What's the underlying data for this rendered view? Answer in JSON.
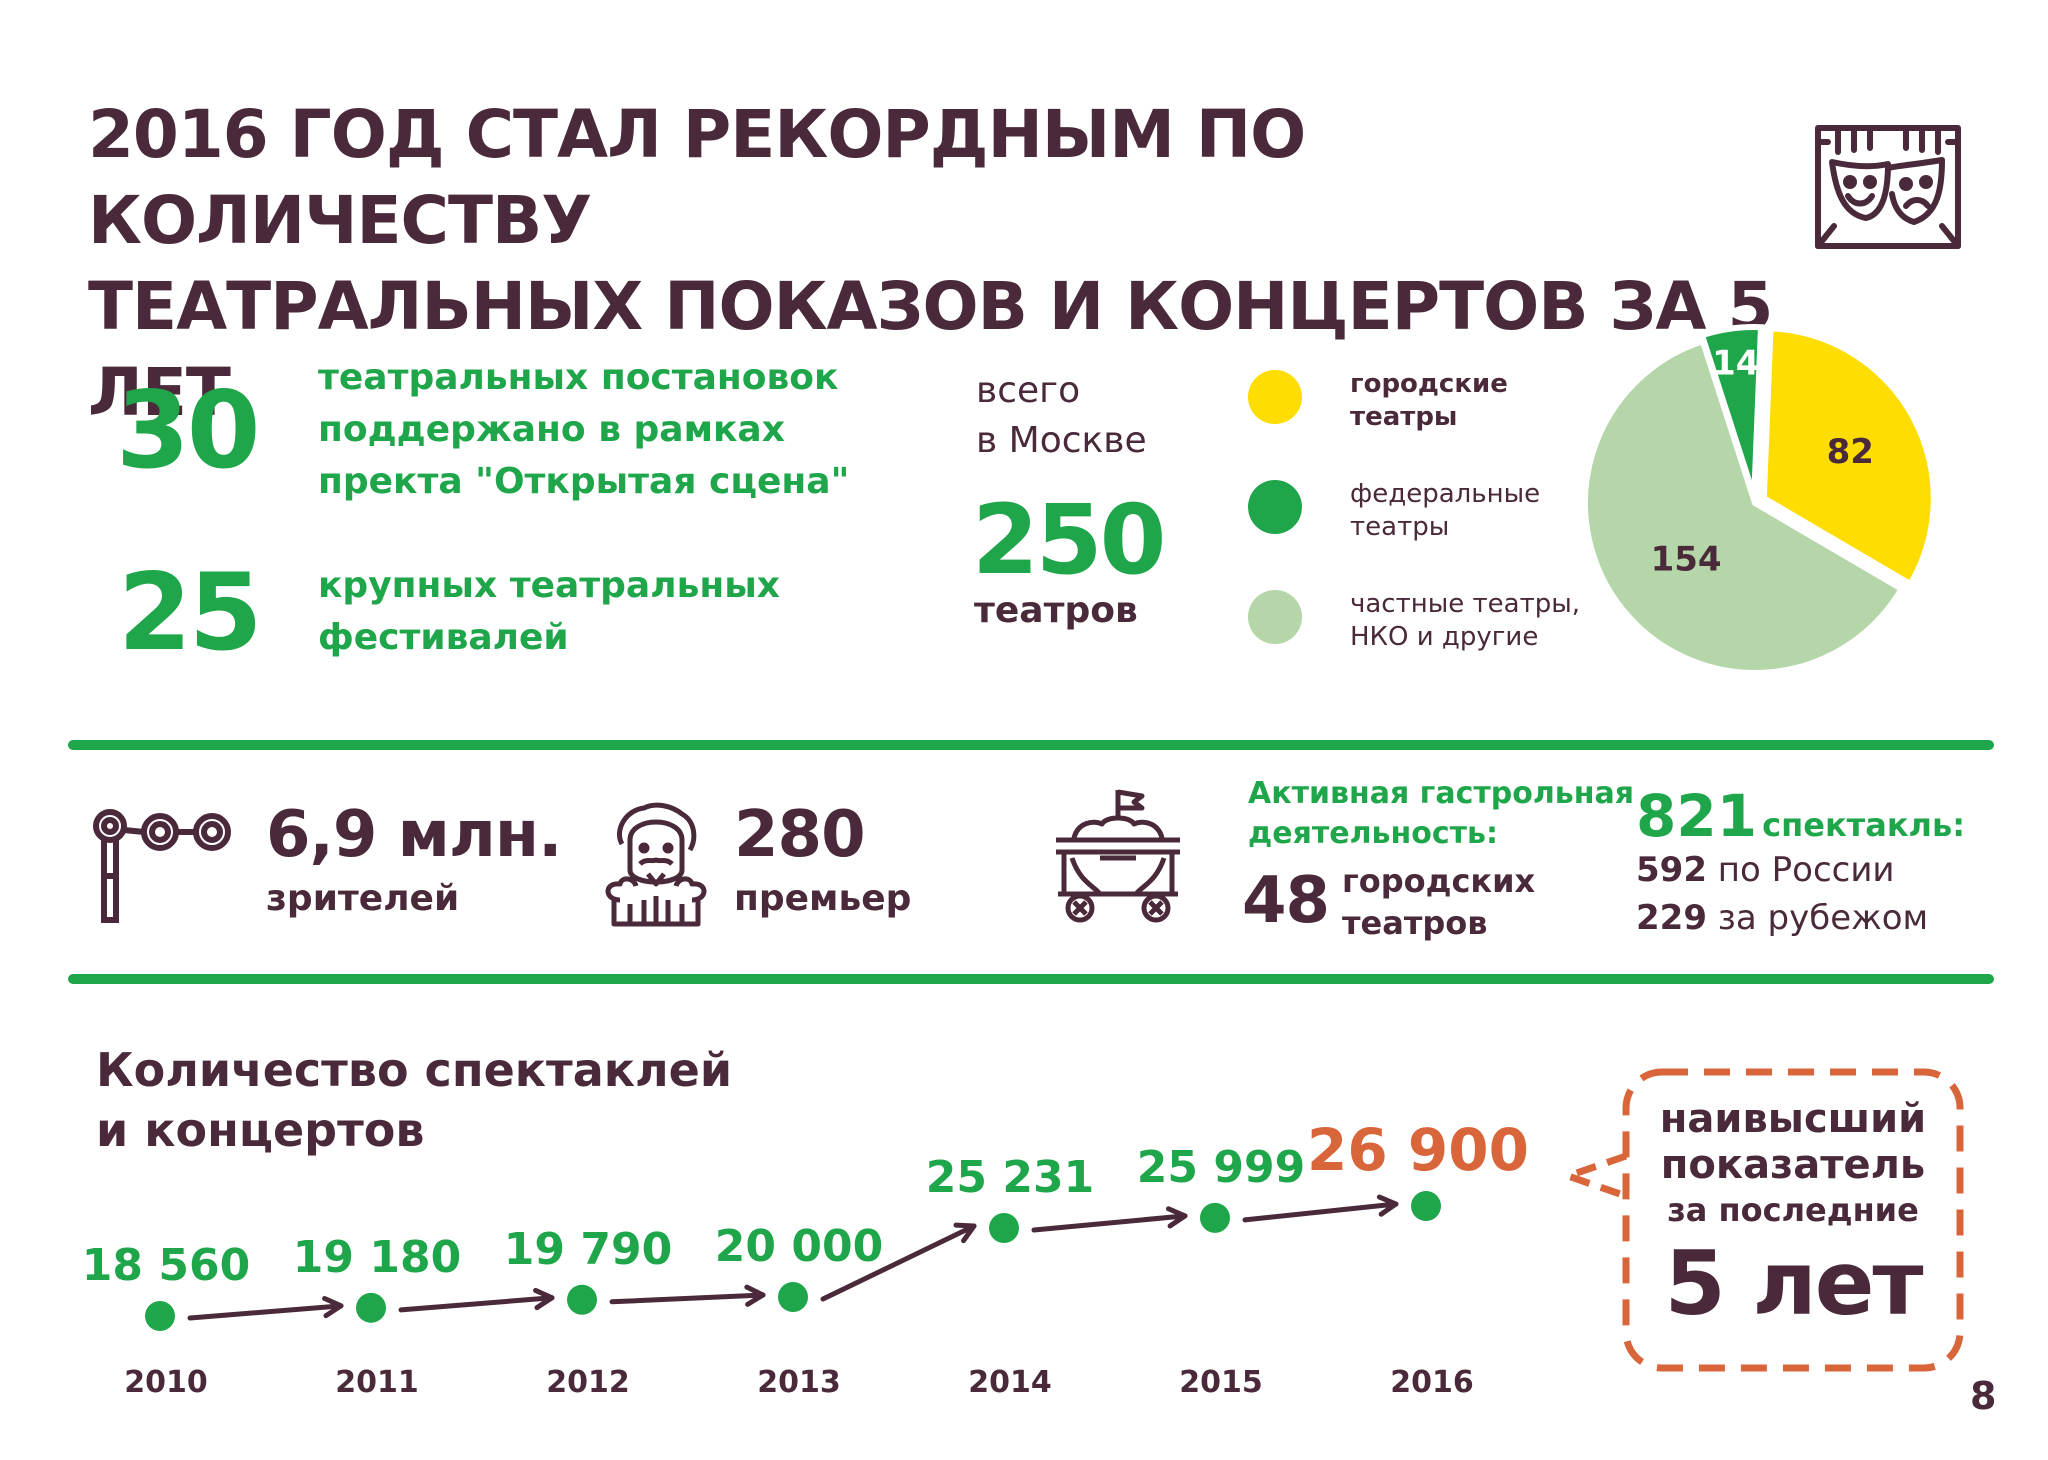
{
  "title": {
    "line1": "2016 ГОД СТАЛ РЕКОРДНЫМ ПО КОЛИЧЕСТВУ",
    "line2": "ТЕАТРАЛЬНЫХ ПОКАЗОВ И КОНЦЕРТОВ ЗА 5 ЛЕТ"
  },
  "top_stats": [
    {
      "number": "30",
      "text_lines": [
        "театральных постановок",
        "поддержано в рамках",
        "пректа \"Открытая сцена\""
      ]
    },
    {
      "number": "25",
      "text_lines": [
        "крупных театральных",
        "фестивалей"
      ]
    }
  ],
  "moscow": {
    "caption_line1": "всего",
    "caption_line2": "в Москве",
    "number": "250",
    "unit": "театров"
  },
  "legend": [
    {
      "label_line1": "городские",
      "label_line2": "театры",
      "color": "#ffdd00",
      "bold": true
    },
    {
      "label_line1": "федеральные",
      "label_line2": "театры",
      "color": "#1fa64a",
      "bold": false
    },
    {
      "label_line1": "частные театры,",
      "label_line2": "НКО и другие",
      "color": "#b5d6a8",
      "bold": false
    }
  ],
  "chart_data": {
    "type": "pie",
    "slices": [
      {
        "label": "городские театры",
        "value": 82,
        "color": "#ffdd00"
      },
      {
        "label": "частные театры, НКО и другие",
        "value": 154,
        "color": "#b5d6a8"
      },
      {
        "label": "федеральные театры",
        "value": 14,
        "color": "#1fa64a"
      }
    ],
    "value_labels": [
      "82",
      "154",
      "14"
    ]
  },
  "middle": {
    "viewers_value": "6,9 млн.",
    "viewers_label": "зрителей",
    "premieres_value": "280",
    "premieres_label": "премьер",
    "tour_heading_line1": "Активная гастрольная",
    "tour_heading_line2": "деятельность:",
    "tour_number": "48",
    "tour_label_line1": "городских",
    "tour_label_line2": "театров",
    "shows_number": "821",
    "shows_label": "спектакль:",
    "russia_number": "592",
    "russia_label": "по России",
    "abroad_number": "229",
    "abroad_label": "за рубежом"
  },
  "timeline": {
    "heading_line1": "Количество спектаклей",
    "heading_line2": "и концертов",
    "points": [
      {
        "year": "2010",
        "value": "18 560"
      },
      {
        "year": "2011",
        "value": "19 180"
      },
      {
        "year": "2012",
        "value": "19 790"
      },
      {
        "year": "2013",
        "value": "20 000"
      },
      {
        "year": "2014",
        "value": "25 231"
      },
      {
        "year": "2015",
        "value": "25 999"
      },
      {
        "year": "2016",
        "value": "26 900"
      }
    ],
    "highlight_color": "#d9663a"
  },
  "callout": {
    "line1": "наивысший",
    "line2": "показатель",
    "line3": "за последние",
    "line4": "5 лет"
  },
  "page_number": "8",
  "colors": {
    "plum": "#4a2a3a",
    "green": "#1fa64a",
    "yellow": "#ffdd00",
    "light_green": "#b5d6a8",
    "orange": "#d9663a"
  }
}
